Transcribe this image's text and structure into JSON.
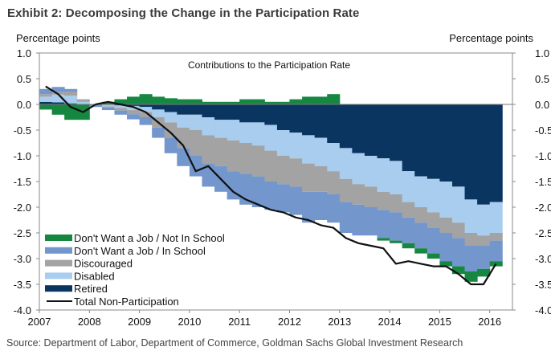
{
  "title": "Exhibit 2: Decomposing the Change in the Participation Rate",
  "source": "Source: Department of Labor, Department of Commerce, Goldman Sachs Global Investment Research",
  "chart_data": {
    "type": "area",
    "subtype": "stacked-step-bar-with-line",
    "title": "Contributions to the Participation Rate",
    "ylabel_left": "Percentage points",
    "ylabel_right": "Percentage points",
    "xlabel": "",
    "ylim": [
      -4.0,
      1.0
    ],
    "yticks": [
      "1.0",
      "0.5",
      "0.0",
      "-0.5",
      "-1.0",
      "-1.5",
      "-2.0",
      "-2.5",
      "-3.0",
      "-3.5",
      "-4.0"
    ],
    "ytick_values": [
      1.0,
      0.5,
      0.0,
      -0.5,
      -1.0,
      -1.5,
      -2.0,
      -2.5,
      -3.0,
      -3.5,
      -4.0
    ],
    "xlim": [
      2007,
      2016.5
    ],
    "xticks": [
      "2007",
      "2008",
      "2009",
      "2010",
      "2011",
      "2012",
      "2013",
      "2014",
      "2015",
      "2016"
    ],
    "xtick_values": [
      2007,
      2008,
      2009,
      2010,
      2011,
      2012,
      2013,
      2014,
      2015,
      2016
    ],
    "grid": false,
    "legend_position": "bottom-left",
    "x": [
      2007.0,
      2007.25,
      2007.5,
      2007.75,
      2008.0,
      2008.25,
      2008.5,
      2008.75,
      2009.0,
      2009.25,
      2009.5,
      2009.75,
      2010.0,
      2010.25,
      2010.5,
      2010.75,
      2011.0,
      2011.25,
      2011.5,
      2011.75,
      2012.0,
      2012.25,
      2012.5,
      2012.75,
      2013.0,
      2013.25,
      2013.5,
      2013.75,
      2014.0,
      2014.25,
      2014.5,
      2014.75,
      2015.0,
      2015.25,
      2015.5,
      2015.75,
      2016.0
    ],
    "series": [
      {
        "name": "Retired",
        "color": "#0b3561",
        "values": [
          0.05,
          0.04,
          0.02,
          0.0,
          0.0,
          -0.01,
          -0.02,
          -0.03,
          -0.05,
          -0.1,
          -0.15,
          -0.2,
          -0.2,
          -0.25,
          -0.3,
          -0.3,
          -0.35,
          -0.35,
          -0.4,
          -0.5,
          -0.55,
          -0.6,
          -0.65,
          -0.75,
          -0.85,
          -0.95,
          -1.0,
          -1.05,
          -1.1,
          -1.3,
          -1.4,
          -1.45,
          -1.5,
          -1.6,
          -1.85,
          -1.95,
          -1.9
        ]
      },
      {
        "name": "Disabled",
        "color": "#a9cdee",
        "values": [
          0.1,
          0.15,
          0.15,
          0.05,
          0.0,
          -0.03,
          -0.05,
          -0.08,
          -0.1,
          -0.15,
          -0.2,
          -0.25,
          -0.3,
          -0.35,
          -0.35,
          -0.4,
          -0.4,
          -0.45,
          -0.5,
          -0.5,
          -0.5,
          -0.55,
          -0.55,
          -0.55,
          -0.6,
          -0.6,
          -0.6,
          -0.65,
          -0.65,
          -0.6,
          -0.6,
          -0.65,
          -0.7,
          -0.7,
          -0.65,
          -0.6,
          -0.6
        ]
      },
      {
        "name": "Discouraged",
        "color": "#a3a3a3",
        "values": [
          0.05,
          0.05,
          0.08,
          0.05,
          0.0,
          -0.02,
          -0.05,
          -0.08,
          -0.1,
          -0.2,
          -0.3,
          -0.4,
          -0.5,
          -0.55,
          -0.55,
          -0.6,
          -0.6,
          -0.6,
          -0.6,
          -0.55,
          -0.55,
          -0.55,
          -0.5,
          -0.45,
          -0.45,
          -0.4,
          -0.4,
          -0.35,
          -0.35,
          -0.3,
          -0.3,
          -0.3,
          -0.3,
          -0.3,
          -0.25,
          -0.2,
          -0.15
        ]
      },
      {
        "name": "Don't Want a Job / In School",
        "color": "#7397cc",
        "values": [
          0.1,
          0.1,
          0.05,
          0.0,
          -0.05,
          -0.05,
          -0.08,
          -0.1,
          -0.15,
          -0.2,
          -0.3,
          -0.35,
          -0.4,
          -0.45,
          -0.5,
          -0.55,
          -0.6,
          -0.6,
          -0.55,
          -0.55,
          -0.55,
          -0.6,
          -0.55,
          -0.55,
          -0.6,
          -0.6,
          -0.55,
          -0.55,
          -0.55,
          -0.5,
          -0.5,
          -0.5,
          -0.55,
          -0.55,
          -0.5,
          -0.45,
          -0.4
        ]
      },
      {
        "name": "Don't Want a Job / Not In School",
        "color": "#158740",
        "values": [
          -0.1,
          -0.2,
          -0.3,
          -0.3,
          0.0,
          0.05,
          0.1,
          0.15,
          0.2,
          0.15,
          0.12,
          0.1,
          0.1,
          0.05,
          0.05,
          0.05,
          0.1,
          0.1,
          0.05,
          0.05,
          0.1,
          0.15,
          0.15,
          0.2,
          0.0,
          0.0,
          0.0,
          -0.05,
          -0.05,
          -0.1,
          -0.1,
          -0.1,
          -0.1,
          -0.15,
          -0.2,
          -0.15,
          -0.1
        ]
      }
    ],
    "line_series": {
      "name": "Total Non-Participation",
      "color": "#111111",
      "values": [
        0.35,
        0.2,
        -0.05,
        -0.15,
        0.0,
        0.05,
        0.0,
        -0.05,
        -0.15,
        -0.35,
        -0.55,
        -0.8,
        -1.3,
        -1.2,
        -1.45,
        -1.7,
        -1.85,
        -1.95,
        -2.05,
        -2.1,
        -2.2,
        -2.25,
        -2.35,
        -2.4,
        -2.6,
        -2.7,
        -2.75,
        -2.8,
        -3.1,
        -3.05,
        -3.1,
        -3.15,
        -3.15,
        -3.3,
        -3.5,
        -3.5,
        -3.1
      ]
    },
    "legend": [
      {
        "label": "Don't Want a Job / Not In School",
        "color": "#158740",
        "kind": "bar"
      },
      {
        "label": "Don't Want a Job / In School",
        "color": "#7397cc",
        "kind": "bar"
      },
      {
        "label": "Discouraged",
        "color": "#a3a3a3",
        "kind": "bar"
      },
      {
        "label": "Disabled",
        "color": "#a9cdee",
        "kind": "bar"
      },
      {
        "label": "Retired",
        "color": "#0b3561",
        "kind": "bar"
      },
      {
        "label": "Total Non-Participation",
        "color": "#111111",
        "kind": "line"
      }
    ]
  }
}
